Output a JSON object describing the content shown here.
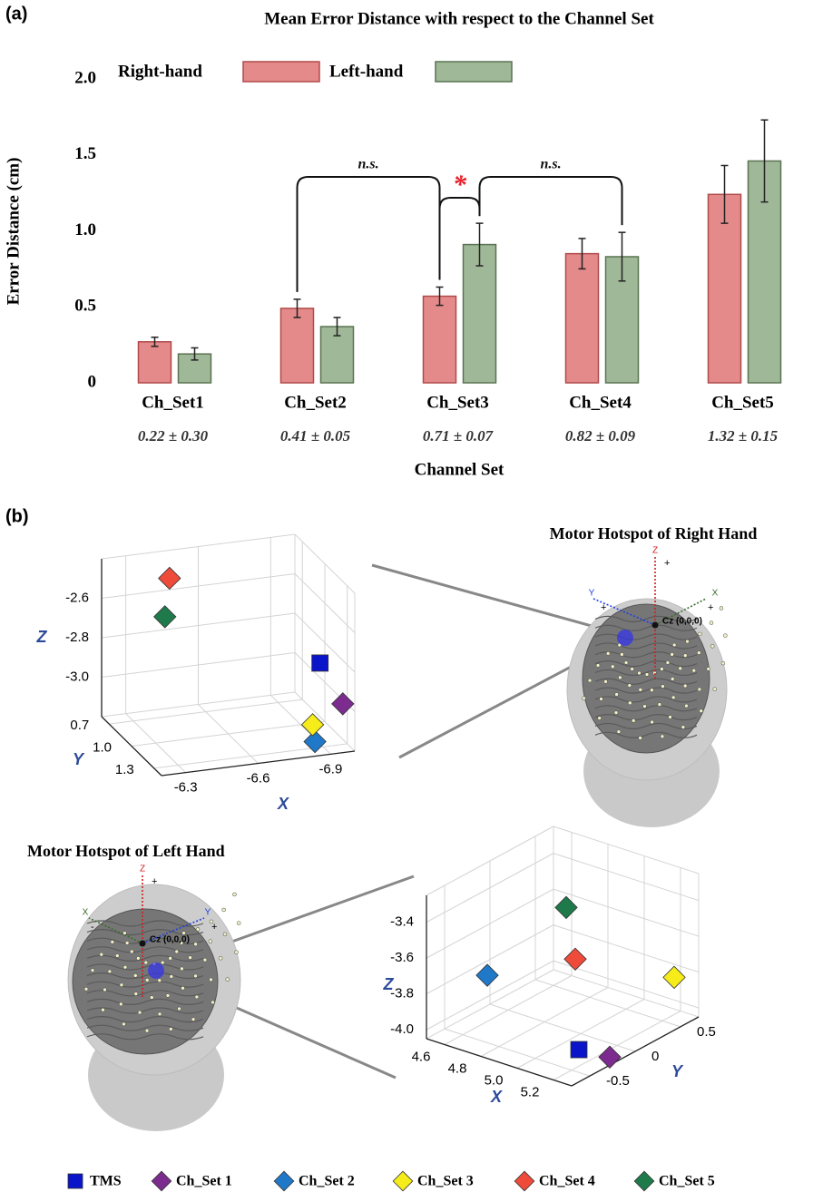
{
  "panel_labels": [
    "(a)",
    "(b)"
  ],
  "legend": [
    {
      "name": "TMS",
      "color": "#0a14c8",
      "marker": "square"
    },
    {
      "name": "Ch_Set 1",
      "color": "#7b2c8e",
      "marker": "diamond"
    },
    {
      "name": "Ch_Set 2",
      "color": "#1f78c8",
      "marker": "diamond"
    },
    {
      "name": "Ch_Set 3",
      "color": "#f5ec1a",
      "marker": "diamond"
    },
    {
      "name": "Ch_Set 4",
      "color": "#ee4b3b",
      "marker": "diamond"
    },
    {
      "name": "Ch_Set 5",
      "color": "#1e7a4a",
      "marker": "diamond"
    }
  ],
  "chart_data": [
    {
      "type": "bar",
      "title": "Mean Error Distance with respect to the Channel Set",
      "x_label": "Channel Set",
      "y_label": "Error Distance (cm)",
      "categories": [
        "Ch_Set1",
        "Ch_Set2",
        "Ch_Set3",
        "Ch_Set4",
        "Ch_Set5"
      ],
      "category_notes": [
        "0.22 ± 0.30",
        "0.41 ± 0.05",
        "0.71 ± 0.07",
        "0.82 ± 0.09",
        "1.32 ± 0.15"
      ],
      "series": [
        {
          "name": "Right-hand",
          "color": "#e58a8a",
          "values": [
            0.27,
            0.49,
            0.57,
            0.85,
            1.24
          ],
          "errors": [
            0.03,
            0.06,
            0.06,
            0.1,
            0.19
          ]
        },
        {
          "name": "Left-hand",
          "color": "#9fb898",
          "values": [
            0.19,
            0.37,
            0.91,
            0.83,
            1.46
          ],
          "errors": [
            0.04,
            0.06,
            0.14,
            0.16,
            0.27
          ]
        }
      ],
      "significance": [
        {
          "label": "n.s."
        },
        {
          "label": "*",
          "color": "#e8202a"
        },
        {
          "label": "n.s."
        }
      ],
      "ylim": [
        0,
        2
      ],
      "yticks": [
        0,
        0.5,
        {
          "value": 1,
          "label": "1.0"
        },
        1.5,
        {
          "value": 2,
          "label": "2.0"
        }
      ]
    },
    {
      "type": "scatter3d",
      "title": "Motor Hotspot of Right Hand",
      "origin_label": "Cz (0,0,0)",
      "head_axes": [
        "Z",
        "Y",
        "X"
      ],
      "head_signs": [
        "+",
        "+",
        "+"
      ],
      "x_label": "X",
      "y_label": "Y",
      "z_label": "Z",
      "x": [
        -6.98,
        -7.0,
        -6.86,
        -6.9,
        -6.45,
        -6.4
      ],
      "y": [
        1.0,
        1.24,
        1.32,
        1.16,
        0.7,
        0.8
      ],
      "z": [
        -2.9,
        -3.02,
        -3.16,
        -3.14,
        -2.5,
        -2.65
      ],
      "xlim": [
        -6.2,
        -7.0
      ],
      "ylim": [
        0.6,
        1.4
      ],
      "zlim": [
        -3.2,
        -2.4
      ],
      "xticks": [
        -6.3,
        -6.6,
        -6.9
      ],
      "yticks": [
        0.7,
        {
          "value": 1,
          "label": "1.0"
        },
        1.3
      ],
      "zticks": [
        -2.6,
        -2.8,
        {
          "value": -3,
          "label": "-3.0"
        }
      ]
    },
    {
      "type": "scatter3d",
      "title": "Motor Hotspot of Left Hand",
      "origin_label": "Cz (0,0,0)",
      "head_axes": [
        "Z",
        "Y",
        "X"
      ],
      "head_signs": [
        "+",
        "+",
        "-"
      ],
      "x_label": "X",
      "y_label": "Y",
      "z_label": "Z",
      "x": [
        5.22,
        5.26,
        4.58,
        5.26,
        4.94,
        4.74
      ],
      "y": [
        -0.46,
        -0.2,
        -0.19,
        0.51,
        0.06,
        0.36
      ],
      "z": [
        -3.94,
        -4.04,
        -3.81,
        -3.79,
        -3.67,
        -3.53
      ],
      "xlim": [
        4.5,
        5.3
      ],
      "ylim": [
        -0.7,
        0.7
      ],
      "zlim": [
        -4.05,
        -3.25
      ],
      "xticks": [
        4.6,
        4.8,
        {
          "value": 5,
          "label": "5.0"
        },
        5.2
      ],
      "yticks": [
        -0.5,
        0,
        0.5
      ],
      "zticks": [
        -3.4,
        -3.6,
        -3.8,
        {
          "value": -4,
          "label": "-4.0"
        }
      ]
    }
  ]
}
